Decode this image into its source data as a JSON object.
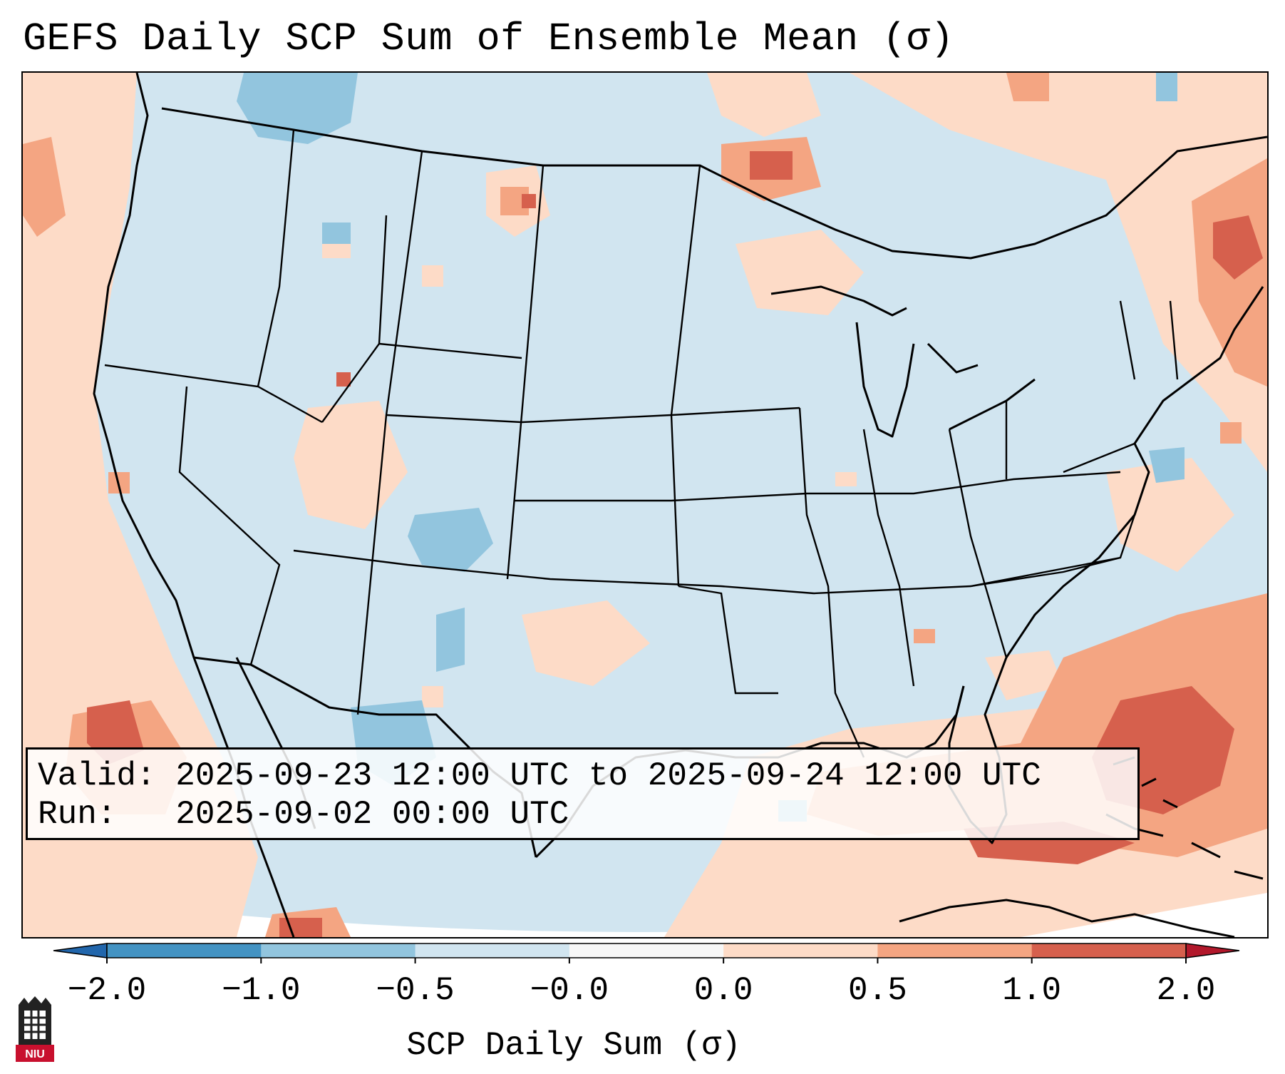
{
  "title": "GEFS Daily SCP Sum of Ensemble Mean (σ)",
  "info_box": {
    "valid_line": "Valid: 2025-09-23 12:00 UTC to 2025-09-24 12:00 UTC",
    "run_line": "Run:   2025-09-02 00:00 UTC"
  },
  "colorbar": {
    "label": "SCP Daily Sum (σ)",
    "ticks": [
      "−2.0",
      "−1.0",
      "−0.5",
      "−0.0",
      "0.0",
      "0.5",
      "1.0",
      "2.0"
    ],
    "bin_colors": [
      "#4393c3",
      "#92c5de",
      "#d1e5f0",
      "#f7f7f7",
      "#fddbc7",
      "#f4a582",
      "#d6604d"
    ],
    "extend_min_color": "#2166ac",
    "extend_max_color": "#b2182b"
  },
  "map": {
    "background_color": "#d1e5f0",
    "features": [
      "positive-anomaly-gulf-atlantic",
      "positive-anomaly-pacific",
      "positive-anomaly-great-lakes",
      "negative-anomaly-southwest"
    ]
  },
  "logo": {
    "text": "NIU"
  }
}
